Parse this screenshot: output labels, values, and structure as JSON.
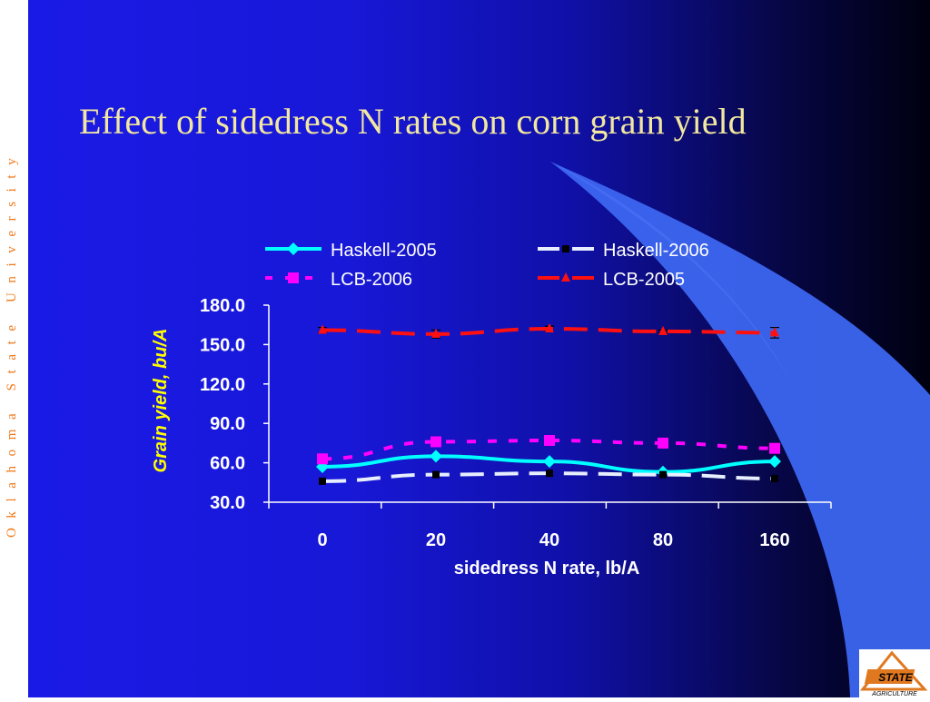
{
  "slide": {
    "title": "Effect of sidedress N rates on corn grain yield",
    "sidebar_text": "Oklahoma State University",
    "logo": {
      "wordmark": "STATE",
      "caption": "AGRICULTURE"
    }
  },
  "colors": {
    "background": "#1818d8",
    "title": "#f2e7a0",
    "sidebar_text": "#f07818",
    "axis_label": "#ffff00",
    "chart_text": "#ffffff"
  },
  "chart_data": {
    "type": "line",
    "title": "",
    "xlabel": "sidedress N rate, lb/A",
    "ylabel": "Grain yield, bu/A",
    "categories": [
      "0",
      "20",
      "40",
      "80",
      "160"
    ],
    "ylim": [
      30,
      180
    ],
    "yticks": [
      "30.0",
      "60.0",
      "90.0",
      "120.0",
      "150.0",
      "180.0"
    ],
    "grid": false,
    "legend": "top",
    "series": [
      {
        "name": "Haskell-2005",
        "values": [
          57,
          65,
          61,
          53,
          61
        ],
        "color": "#00ffff",
        "marker": "diamond",
        "dash": "solid",
        "errors": [
          0,
          0,
          0,
          0,
          0
        ]
      },
      {
        "name": "Haskell-2006",
        "values": [
          46,
          51,
          52,
          51,
          48
        ],
        "color": "#e6eeff",
        "marker": "square",
        "dash": "long",
        "errors": [
          0,
          0,
          0,
          0,
          0
        ]
      },
      {
        "name": "LCB-2006",
        "values": [
          63,
          76,
          77,
          75,
          71
        ],
        "color": "#ff00ff",
        "marker": "square",
        "dash": "short",
        "errors": [
          0,
          0,
          0,
          0,
          0
        ]
      },
      {
        "name": "LCB-2005",
        "values": [
          161,
          158,
          162,
          160,
          159
        ],
        "color": "#ff1010",
        "marker": "triangle",
        "dash": "long",
        "errors": [
          2,
          3,
          2,
          1,
          4
        ]
      }
    ]
  }
}
